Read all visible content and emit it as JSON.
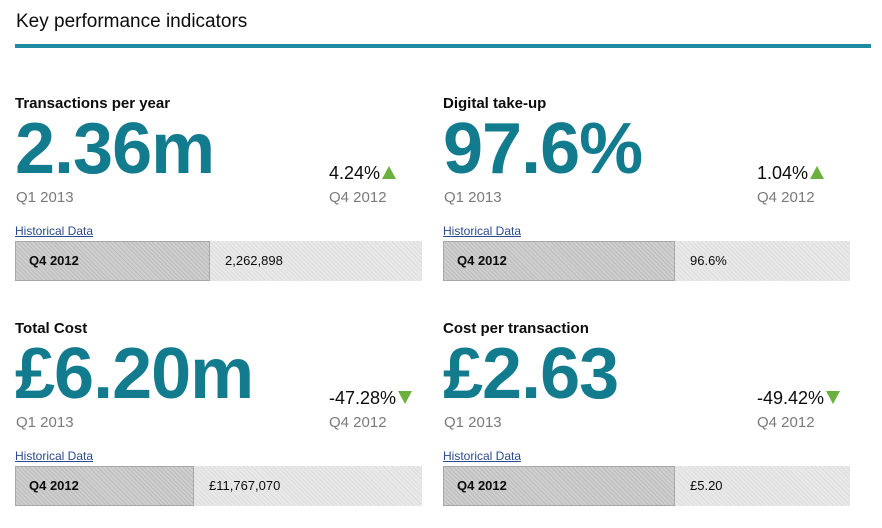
{
  "header": {
    "title": "Key performance indicators"
  },
  "kpis": [
    {
      "title": "Transactions per year",
      "value": "2.36m",
      "period": "Q1 2013",
      "change": "4.24%",
      "direction": "up",
      "prev_period": "Q4 2012",
      "history_link": "Historical Data",
      "history_period": "Q4 2012",
      "history_value": "2,262,898",
      "history_fraction": 0.48
    },
    {
      "title": "Digital take-up",
      "value": "97.6%",
      "period": "Q1 2013",
      "change": "1.04%",
      "direction": "up",
      "prev_period": "Q4 2012",
      "history_link": "Historical Data",
      "history_period": "Q4 2012",
      "history_value": "96.6%",
      "history_fraction": 0.57
    },
    {
      "title": "Total Cost",
      "value": "£6.20m",
      "period": "Q1 2013",
      "change": "-47.28%",
      "direction": "down",
      "prev_period": "Q4 2012",
      "history_link": "Historical Data",
      "history_period": "Q4 2012",
      "history_value": "£11,767,070",
      "history_fraction": 0.44
    },
    {
      "title": "Cost per transaction",
      "value": "£2.63",
      "period": "Q1 2013",
      "change": "-49.42%",
      "direction": "down",
      "prev_period": "Q4 2012",
      "history_link": "Historical Data",
      "history_period": "Q4 2012",
      "history_value": "£5.20",
      "history_fraction": 0.57
    }
  ],
  "colors": {
    "accent": "#1d8ba0",
    "value": "#137b8e",
    "arrow": "#6bb03e"
  }
}
